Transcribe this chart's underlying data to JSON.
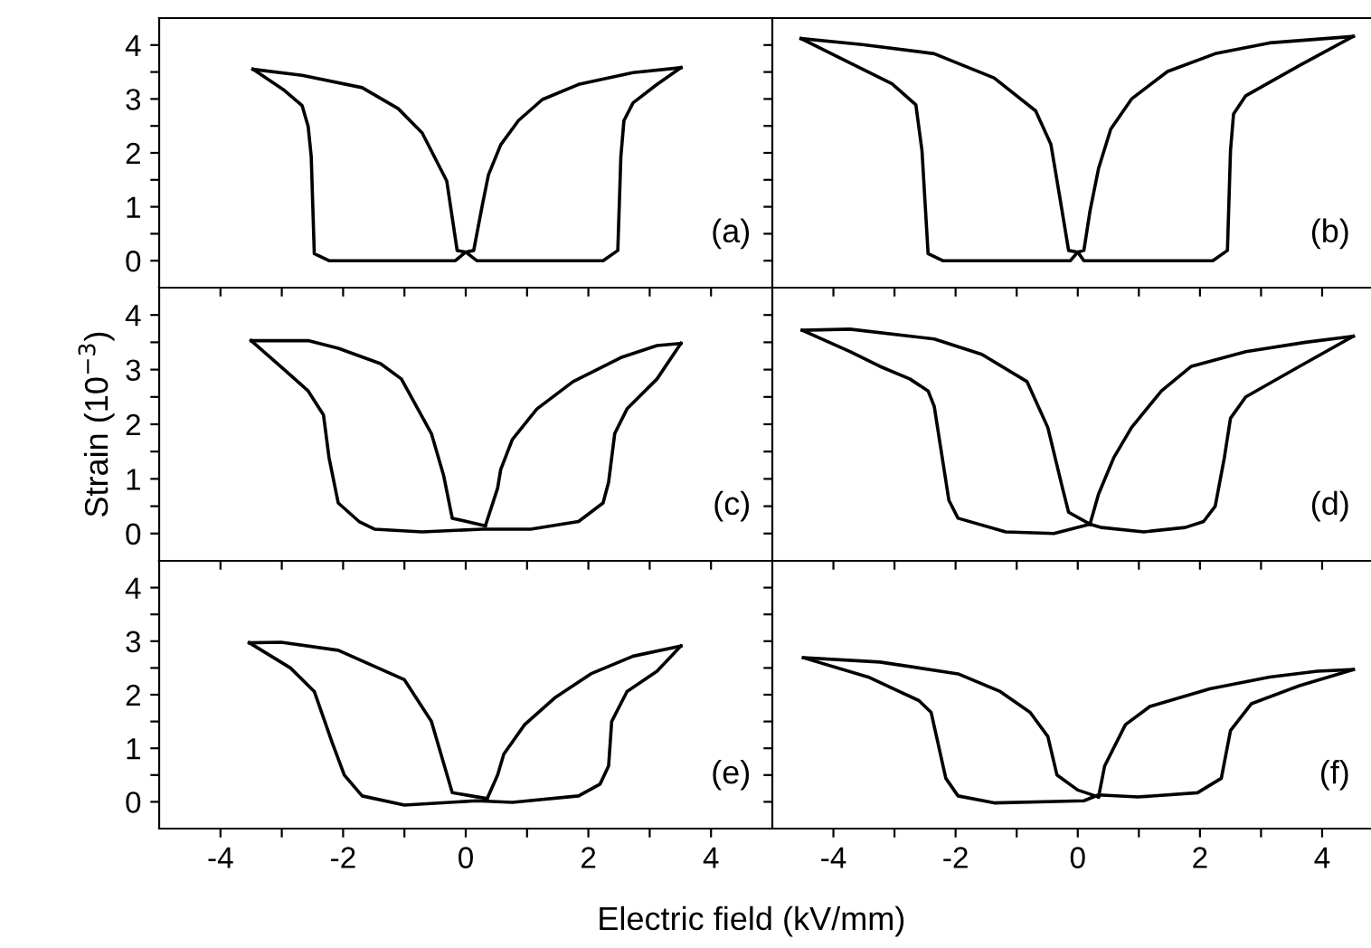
{
  "chart_data": [
    {
      "type": "line",
      "annotations": [
        "(a)"
      ],
      "tick_labels": "y",
      "xlim": [
        -5,
        5
      ],
      "ylim": [
        -0.5,
        4.5
      ],
      "xticks": [
        -4,
        {
          "value": -3,
          "label": null
        },
        -2,
        {
          "value": -1,
          "label": null
        },
        0,
        {
          "value": 1,
          "label": null
        },
        2,
        {
          "value": 3,
          "label": null
        },
        4
      ],
      "yticks": [
        0,
        {
          "value": 0.5,
          "label": null
        },
        1,
        {
          "value": 1.5,
          "label": null
        },
        2,
        {
          "value": 2.5,
          "label": null
        },
        3,
        {
          "value": 3.5,
          "label": null
        },
        4
      ],
      "series": [
        {
          "color": "#000000",
          "x": [
            -3.47,
            -2.67,
            -1.69,
            -1.1,
            -0.71,
            -0.31,
            -0.14,
            0,
            0.13,
            0.27,
            0.37,
            0.57,
            0.86,
            1.25,
            1.84,
            2.73,
            3.51
          ],
          "values": [
            3.55,
            3.44,
            3.21,
            2.82,
            2.37,
            1.48,
            0.19,
            0.16,
            0.19,
            1.03,
            1.59,
            2.15,
            2.6,
            2.99,
            3.27,
            3.49,
            3.58
          ]
        },
        {
          "color": "#000000",
          "x": [
            3.51,
            3.12,
            2.73,
            2.58,
            2.53,
            2.48,
            2.24,
            0.18,
            0,
            -0.17,
            -2.23,
            -2.47,
            -2.52,
            -2.57,
            -2.67,
            -2.96,
            -3.47
          ],
          "values": [
            3.58,
            3.27,
            2.93,
            2.6,
            1.93,
            0.19,
            0,
            0,
            0.16,
            0,
            0,
            0.13,
            1.93,
            2.49,
            2.88,
            3.16,
            3.55
          ]
        }
      ]
    },
    {
      "type": "line",
      "annotations": [
        "(b)"
      ],
      "tick_labels": false,
      "xlim": [
        -5,
        4.8
      ],
      "ylim": [
        -0.5,
        4.5
      ],
      "xticks": [
        -4,
        {
          "value": -3,
          "label": null
        },
        -2,
        {
          "value": -1,
          "label": null
        },
        0,
        {
          "value": 1,
          "label": null
        },
        2,
        {
          "value": 3,
          "label": null
        },
        4
      ],
      "yticks": [
        0,
        {
          "value": 0.5,
          "label": null
        },
        1,
        {
          "value": 1.5,
          "label": null
        },
        2,
        {
          "value": 2.5,
          "label": null
        },
        3,
        {
          "value": 3.5,
          "label": null
        },
        4
      ],
      "series": [
        {
          "color": "#000000",
          "x": [
            -4.53,
            -3.53,
            -2.35,
            -1.37,
            -0.69,
            -0.44,
            -0.29,
            -0.15,
            0,
            0.1,
            0.2,
            0.34,
            0.54,
            0.88,
            1.47,
            2.25,
            3.14,
            4.51
          ],
          "values": [
            4.12,
            4.01,
            3.84,
            3.39,
            2.78,
            2.16,
            1.15,
            0.19,
            0.16,
            0.19,
            0.92,
            1.71,
            2.44,
            3.0,
            3.51,
            3.84,
            4.04,
            4.16
          ]
        },
        {
          "color": "#000000",
          "x": [
            4.51,
            3.63,
            2.75,
            2.55,
            2.5,
            2.45,
            2.21,
            0.1,
            0,
            -0.12,
            -2.21,
            -2.45,
            -2.55,
            -2.65,
            -3.04,
            -4.53
          ],
          "values": [
            4.16,
            3.62,
            3.06,
            2.72,
            2.04,
            0.19,
            0,
            0,
            0.16,
            0,
            0,
            0.13,
            2.04,
            2.89,
            3.28,
            4.12
          ]
        }
      ]
    },
    {
      "type": "line",
      "annotations": [
        "(c)"
      ],
      "ylabel": "Strain (10$^{−3}$)",
      "tick_labels": "y",
      "xlim": [
        -5,
        5
      ],
      "ylim": [
        -0.5,
        4.5
      ],
      "xticks": [
        -4,
        {
          "value": -3,
          "label": null
        },
        -2,
        {
          "value": -1,
          "label": null
        },
        0,
        {
          "value": 1,
          "label": null
        },
        2,
        {
          "value": 3,
          "label": null
        },
        4
      ],
      "yticks": [
        0,
        {
          "value": 0.5,
          "label": null
        },
        1,
        {
          "value": 1.5,
          "label": null
        },
        2,
        {
          "value": 2.5,
          "label": null
        },
        3,
        {
          "value": 3.5,
          "label": null
        },
        4
      ],
      "series": [
        {
          "color": "#000000",
          "x": [
            0.32,
            0.52,
            0.57,
            0.76,
            1.16,
            1.75,
            2.53,
            3.12,
            3.51
          ],
          "values": [
            0.14,
            0.83,
            1.17,
            1.72,
            2.28,
            2.78,
            3.22,
            3.44,
            3.48
          ]
        },
        {
          "color": "#000000",
          "x": [
            3.51,
            3.12,
            2.63,
            2.43,
            2.33,
            2.24,
            1.84,
            1.06,
            0.27,
            -0.71,
            -1.49,
            -1.74,
            -2.08,
            -2.23,
            -2.32,
            -2.57,
            -2.96,
            -3.5
          ],
          "values": [
            3.48,
            2.83,
            2.28,
            1.83,
            0.94,
            0.56,
            0.22,
            0.08,
            0.08,
            0.03,
            0.08,
            0.22,
            0.56,
            1.39,
            2.17,
            2.61,
            3.0,
            3.53
          ]
        },
        {
          "color": "#000000",
          "x": [
            -3.5,
            -2.57,
            -2.08,
            -1.39,
            -1.05,
            -0.56,
            -0.36,
            -0.22,
            0.32
          ],
          "values": [
            3.53,
            3.53,
            3.39,
            3.11,
            2.83,
            1.83,
            1.06,
            0.28,
            0.14
          ]
        }
      ]
    },
    {
      "type": "line",
      "annotations": [
        "(d)"
      ],
      "tick_labels": false,
      "xlim": [
        -5,
        4.8
      ],
      "ylim": [
        -0.5,
        4.5
      ],
      "xticks": [
        -4,
        {
          "value": -3,
          "label": null
        },
        -2,
        {
          "value": -1,
          "label": null
        },
        0,
        {
          "value": 1,
          "label": null
        },
        2,
        {
          "value": 3,
          "label": null
        },
        4
      ],
      "yticks": [
        0,
        {
          "value": 0.5,
          "label": null
        },
        1,
        {
          "value": 1.5,
          "label": null
        },
        2,
        {
          "value": 2.5,
          "label": null
        },
        3,
        {
          "value": 3.5,
          "label": null
        },
        4
      ],
      "series": [
        {
          "color": "#000000",
          "x": [
            0.2,
            0.34,
            0.59,
            0.88,
            1.37,
            1.86,
            2.75,
            3.73,
            4.51
          ],
          "values": [
            0.17,
            0.72,
            1.39,
            1.94,
            2.61,
            3.06,
            3.33,
            3.5,
            3.61
          ]
        },
        {
          "color": "#000000",
          "x": [
            4.51,
            3.63,
            2.75,
            2.5,
            2.4,
            2.25,
            2.06,
            1.76,
            1.08,
            0.39,
            0.2,
            -0.39,
            -1.18,
            -1.96,
            -2.11,
            -2.35,
            -2.45,
            -2.75,
            -3.24,
            -3.73,
            -4.51
          ],
          "values": [
            3.61,
            3.06,
            2.5,
            2.11,
            1.39,
            0.5,
            0.22,
            0.11,
            0.03,
            0.11,
            0.17,
            0,
            0.03,
            0.28,
            0.61,
            2.33,
            2.61,
            2.83,
            3.06,
            3.33,
            3.72
          ]
        },
        {
          "color": "#000000",
          "x": [
            -4.51,
            -3.73,
            -2.35,
            -1.57,
            -0.83,
            -0.49,
            -0.25,
            -0.15,
            0.2
          ],
          "values": [
            3.72,
            3.74,
            3.56,
            3.28,
            2.78,
            1.94,
            0.83,
            0.39,
            0.17
          ]
        }
      ]
    },
    {
      "type": "line",
      "annotations": [
        "(e)"
      ],
      "xlabel": "Electric field (kV/mm)",
      "xlim": [
        -5,
        5
      ],
      "ylim": [
        -0.5,
        4.5
      ],
      "xticks": [
        -4,
        {
          "value": -3,
          "label": null
        },
        -2,
        {
          "value": -1,
          "label": null
        },
        0,
        {
          "value": 1,
          "label": null
        },
        2,
        {
          "value": 3,
          "label": null
        },
        4
      ],
      "yticks": [
        0,
        {
          "value": 0.5,
          "label": null
        },
        1,
        {
          "value": 1.5,
          "label": null
        },
        2,
        {
          "value": 2.5,
          "label": null
        },
        3,
        {
          "value": 3.5,
          "label": null
        },
        4
      ],
      "series": [
        {
          "color": "#000000",
          "x": [
            0.35,
            0.52,
            0.62,
            0.96,
            1.45,
            2.04,
            2.73,
            3.51
          ],
          "values": [
            0.06,
            0.5,
            0.89,
            1.44,
            1.94,
            2.39,
            2.72,
            2.91
          ]
        },
        {
          "color": "#000000",
          "x": [
            3.51,
            3.12,
            2.63,
            2.38,
            2.33,
            2.19,
            1.84,
            0.76,
            0.18,
            -1.0,
            -1.69,
            -1.98,
            -2.18,
            -2.47,
            -2.86,
            -3.53
          ],
          "values": [
            2.91,
            2.44,
            2.06,
            1.5,
            0.67,
            0.33,
            0.11,
            -0.01,
            0.02,
            -0.06,
            0.11,
            0.5,
            1.11,
            2.06,
            2.5,
            2.97
          ]
        },
        {
          "color": "#000000",
          "x": [
            -3.53,
            -3.01,
            -2.08,
            -1.0,
            -0.56,
            -0.22,
            0.35
          ],
          "values": [
            2.97,
            2.98,
            2.83,
            2.28,
            1.5,
            0.17,
            0.06
          ]
        }
      ]
    },
    {
      "type": "line",
      "annotations": [
        "(f)"
      ],
      "tick_labels": "x",
      "xlim": [
        -5,
        4.8
      ],
      "ylim": [
        -0.5,
        4.5
      ],
      "xticks": [
        -4,
        {
          "value": -3,
          "label": null
        },
        -2,
        {
          "value": -1,
          "label": null
        },
        0,
        {
          "value": 1,
          "label": null
        },
        2,
        {
          "value": 3,
          "label": null
        },
        4
      ],
      "yticks": [
        0,
        {
          "value": 0.5,
          "label": null
        },
        1,
        {
          "value": 1.5,
          "label": null
        },
        2,
        {
          "value": 2.5,
          "label": null
        },
        3,
        {
          "value": 3.5,
          "label": null
        },
        4
      ],
      "series": [
        {
          "color": "#000000",
          "x": [
            0.34,
            0.44,
            0.78,
            1.18,
            2.16,
            3.14,
            3.92,
            4.51
          ],
          "values": [
            0.09,
            0.67,
            1.44,
            1.78,
            2.11,
            2.33,
            2.44,
            2.47
          ]
        },
        {
          "color": "#000000",
          "x": [
            4.51,
            3.63,
            2.84,
            2.5,
            2.35,
            1.96,
            0.98,
            0.34,
            0.1,
            -1.37,
            -1.96,
            -2.16,
            -2.4,
            -2.6,
            -3.43,
            -4.49
          ],
          "values": [
            2.47,
            2.17,
            1.83,
            1.33,
            0.44,
            0.17,
            0.09,
            0.13,
            0.02,
            -0.02,
            0.11,
            0.44,
            1.67,
            1.89,
            2.33,
            2.69
          ]
        },
        {
          "color": "#000000",
          "x": [
            -4.49,
            -3.24,
            -1.96,
            -1.27,
            -0.78,
            -0.49,
            -0.34,
            0,
            0.34
          ],
          "values": [
            2.69,
            2.61,
            2.39,
            2.06,
            1.67,
            1.22,
            0.5,
            0.22,
            0.09
          ]
        }
      ]
    }
  ]
}
